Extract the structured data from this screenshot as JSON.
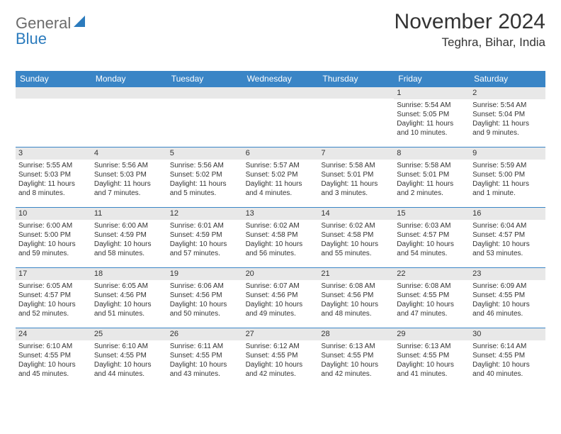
{
  "logo": {
    "general": "General",
    "blue": "Blue"
  },
  "title": "November 2024",
  "location": "Teghra, Bihar, India",
  "colors": {
    "header_bg": "#3a85c6",
    "band_bg": "#e8e8e8",
    "rule": "#3a85c6",
    "text": "#333333",
    "logo_gray": "#6b6b6b",
    "logo_blue": "#2b7bbd"
  },
  "weekdays": [
    "Sunday",
    "Monday",
    "Tuesday",
    "Wednesday",
    "Thursday",
    "Friday",
    "Saturday"
  ],
  "weeks": [
    [
      {
        "n": "",
        "sunrise": "",
        "sunset": "",
        "daylight": ""
      },
      {
        "n": "",
        "sunrise": "",
        "sunset": "",
        "daylight": ""
      },
      {
        "n": "",
        "sunrise": "",
        "sunset": "",
        "daylight": ""
      },
      {
        "n": "",
        "sunrise": "",
        "sunset": "",
        "daylight": ""
      },
      {
        "n": "",
        "sunrise": "",
        "sunset": "",
        "daylight": ""
      },
      {
        "n": "1",
        "sunrise": "Sunrise: 5:54 AM",
        "sunset": "Sunset: 5:05 PM",
        "daylight": "Daylight: 11 hours and 10 minutes."
      },
      {
        "n": "2",
        "sunrise": "Sunrise: 5:54 AM",
        "sunset": "Sunset: 5:04 PM",
        "daylight": "Daylight: 11 hours and 9 minutes."
      }
    ],
    [
      {
        "n": "3",
        "sunrise": "Sunrise: 5:55 AM",
        "sunset": "Sunset: 5:03 PM",
        "daylight": "Daylight: 11 hours and 8 minutes."
      },
      {
        "n": "4",
        "sunrise": "Sunrise: 5:56 AM",
        "sunset": "Sunset: 5:03 PM",
        "daylight": "Daylight: 11 hours and 7 minutes."
      },
      {
        "n": "5",
        "sunrise": "Sunrise: 5:56 AM",
        "sunset": "Sunset: 5:02 PM",
        "daylight": "Daylight: 11 hours and 5 minutes."
      },
      {
        "n": "6",
        "sunrise": "Sunrise: 5:57 AM",
        "sunset": "Sunset: 5:02 PM",
        "daylight": "Daylight: 11 hours and 4 minutes."
      },
      {
        "n": "7",
        "sunrise": "Sunrise: 5:58 AM",
        "sunset": "Sunset: 5:01 PM",
        "daylight": "Daylight: 11 hours and 3 minutes."
      },
      {
        "n": "8",
        "sunrise": "Sunrise: 5:58 AM",
        "sunset": "Sunset: 5:01 PM",
        "daylight": "Daylight: 11 hours and 2 minutes."
      },
      {
        "n": "9",
        "sunrise": "Sunrise: 5:59 AM",
        "sunset": "Sunset: 5:00 PM",
        "daylight": "Daylight: 11 hours and 1 minute."
      }
    ],
    [
      {
        "n": "10",
        "sunrise": "Sunrise: 6:00 AM",
        "sunset": "Sunset: 5:00 PM",
        "daylight": "Daylight: 10 hours and 59 minutes."
      },
      {
        "n": "11",
        "sunrise": "Sunrise: 6:00 AM",
        "sunset": "Sunset: 4:59 PM",
        "daylight": "Daylight: 10 hours and 58 minutes."
      },
      {
        "n": "12",
        "sunrise": "Sunrise: 6:01 AM",
        "sunset": "Sunset: 4:59 PM",
        "daylight": "Daylight: 10 hours and 57 minutes."
      },
      {
        "n": "13",
        "sunrise": "Sunrise: 6:02 AM",
        "sunset": "Sunset: 4:58 PM",
        "daylight": "Daylight: 10 hours and 56 minutes."
      },
      {
        "n": "14",
        "sunrise": "Sunrise: 6:02 AM",
        "sunset": "Sunset: 4:58 PM",
        "daylight": "Daylight: 10 hours and 55 minutes."
      },
      {
        "n": "15",
        "sunrise": "Sunrise: 6:03 AM",
        "sunset": "Sunset: 4:57 PM",
        "daylight": "Daylight: 10 hours and 54 minutes."
      },
      {
        "n": "16",
        "sunrise": "Sunrise: 6:04 AM",
        "sunset": "Sunset: 4:57 PM",
        "daylight": "Daylight: 10 hours and 53 minutes."
      }
    ],
    [
      {
        "n": "17",
        "sunrise": "Sunrise: 6:05 AM",
        "sunset": "Sunset: 4:57 PM",
        "daylight": "Daylight: 10 hours and 52 minutes."
      },
      {
        "n": "18",
        "sunrise": "Sunrise: 6:05 AM",
        "sunset": "Sunset: 4:56 PM",
        "daylight": "Daylight: 10 hours and 51 minutes."
      },
      {
        "n": "19",
        "sunrise": "Sunrise: 6:06 AM",
        "sunset": "Sunset: 4:56 PM",
        "daylight": "Daylight: 10 hours and 50 minutes."
      },
      {
        "n": "20",
        "sunrise": "Sunrise: 6:07 AM",
        "sunset": "Sunset: 4:56 PM",
        "daylight": "Daylight: 10 hours and 49 minutes."
      },
      {
        "n": "21",
        "sunrise": "Sunrise: 6:08 AM",
        "sunset": "Sunset: 4:56 PM",
        "daylight": "Daylight: 10 hours and 48 minutes."
      },
      {
        "n": "22",
        "sunrise": "Sunrise: 6:08 AM",
        "sunset": "Sunset: 4:55 PM",
        "daylight": "Daylight: 10 hours and 47 minutes."
      },
      {
        "n": "23",
        "sunrise": "Sunrise: 6:09 AM",
        "sunset": "Sunset: 4:55 PM",
        "daylight": "Daylight: 10 hours and 46 minutes."
      }
    ],
    [
      {
        "n": "24",
        "sunrise": "Sunrise: 6:10 AM",
        "sunset": "Sunset: 4:55 PM",
        "daylight": "Daylight: 10 hours and 45 minutes."
      },
      {
        "n": "25",
        "sunrise": "Sunrise: 6:10 AM",
        "sunset": "Sunset: 4:55 PM",
        "daylight": "Daylight: 10 hours and 44 minutes."
      },
      {
        "n": "26",
        "sunrise": "Sunrise: 6:11 AM",
        "sunset": "Sunset: 4:55 PM",
        "daylight": "Daylight: 10 hours and 43 minutes."
      },
      {
        "n": "27",
        "sunrise": "Sunrise: 6:12 AM",
        "sunset": "Sunset: 4:55 PM",
        "daylight": "Daylight: 10 hours and 42 minutes."
      },
      {
        "n": "28",
        "sunrise": "Sunrise: 6:13 AM",
        "sunset": "Sunset: 4:55 PM",
        "daylight": "Daylight: 10 hours and 42 minutes."
      },
      {
        "n": "29",
        "sunrise": "Sunrise: 6:13 AM",
        "sunset": "Sunset: 4:55 PM",
        "daylight": "Daylight: 10 hours and 41 minutes."
      },
      {
        "n": "30",
        "sunrise": "Sunrise: 6:14 AM",
        "sunset": "Sunset: 4:55 PM",
        "daylight": "Daylight: 10 hours and 40 minutes."
      }
    ]
  ]
}
